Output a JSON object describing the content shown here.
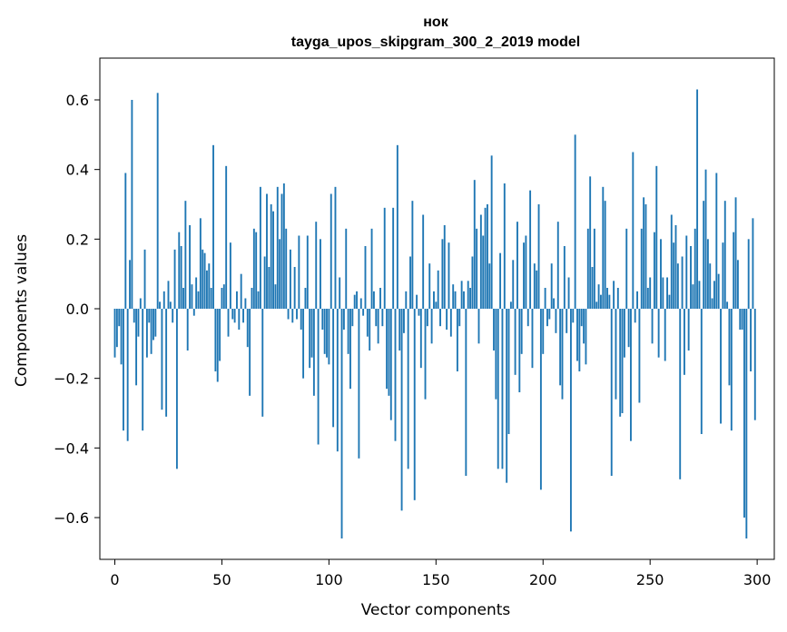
{
  "chart_data": {
    "type": "bar",
    "title": "нок",
    "subtitle": "tayga_upos_skipgram_300_2_2019 model",
    "xlabel": "Vector components",
    "ylabel": "Components values",
    "xlim": [
      -7,
      308
    ],
    "ylim": [
      -0.72,
      0.72
    ],
    "xticks": [
      0,
      50,
      100,
      150,
      200,
      250,
      300
    ],
    "yticks": [
      -0.6,
      -0.4,
      -0.2,
      0.0,
      0.2,
      0.4,
      0.6
    ],
    "ytick_labels": [
      "−0.6",
      "−0.4",
      "−0.2",
      "0.0",
      "0.2",
      "0.4",
      "0.6"
    ],
    "xtick_labels": [
      "0",
      "50",
      "100",
      "150",
      "200",
      "250",
      "300"
    ],
    "grid": false,
    "color": "#1f77b4",
    "x": [
      0,
      1,
      2,
      3,
      4,
      5,
      6,
      7,
      8,
      9,
      10,
      11,
      12,
      13,
      14,
      15,
      16,
      17,
      18,
      19,
      20,
      21,
      22,
      23,
      24,
      25,
      26,
      27,
      28,
      29,
      30,
      31,
      32,
      33,
      34,
      35,
      36,
      37,
      38,
      39,
      40,
      41,
      42,
      43,
      44,
      45,
      46,
      47,
      48,
      49,
      50,
      51,
      52,
      53,
      54,
      55,
      56,
      57,
      58,
      59,
      60,
      61,
      62,
      63,
      64,
      65,
      66,
      67,
      68,
      69,
      70,
      71,
      72,
      73,
      74,
      75,
      76,
      77,
      78,
      79,
      80,
      81,
      82,
      83,
      84,
      85,
      86,
      87,
      88,
      89,
      90,
      91,
      92,
      93,
      94,
      95,
      96,
      97,
      98,
      99,
      100,
      101,
      102,
      103,
      104,
      105,
      106,
      107,
      108,
      109,
      110,
      111,
      112,
      113,
      114,
      115,
      116,
      117,
      118,
      119,
      120,
      121,
      122,
      123,
      124,
      125,
      126,
      127,
      128,
      129,
      130,
      131,
      132,
      133,
      134,
      135,
      136,
      137,
      138,
      139,
      140,
      141,
      142,
      143,
      144,
      145,
      146,
      147,
      148,
      149,
      150,
      151,
      152,
      153,
      154,
      155,
      156,
      157,
      158,
      159,
      160,
      161,
      162,
      163,
      164,
      165,
      166,
      167,
      168,
      169,
      170,
      171,
      172,
      173,
      174,
      175,
      176,
      177,
      178,
      179,
      180,
      181,
      182,
      183,
      184,
      185,
      186,
      187,
      188,
      189,
      190,
      191,
      192,
      193,
      194,
      195,
      196,
      197,
      198,
      199,
      200,
      201,
      202,
      203,
      204,
      205,
      206,
      207,
      208,
      209,
      210,
      211,
      212,
      213,
      214,
      215,
      216,
      217,
      218,
      219,
      220,
      221,
      222,
      223,
      224,
      225,
      226,
      227,
      228,
      229,
      230,
      231,
      232,
      233,
      234,
      235,
      236,
      237,
      238,
      239,
      240,
      241,
      242,
      243,
      244,
      245,
      246,
      247,
      248,
      249,
      250,
      251,
      252,
      253,
      254,
      255,
      256,
      257,
      258,
      259,
      260,
      261,
      262,
      263,
      264,
      265,
      266,
      267,
      268,
      269,
      270,
      271,
      272,
      273,
      274,
      275,
      276,
      277,
      278,
      279,
      280,
      281,
      282,
      283,
      284,
      285,
      286,
      287,
      288,
      289,
      290,
      291,
      292,
      293,
      294,
      295,
      296,
      297,
      298,
      299
    ],
    "values": [
      -0.14,
      -0.11,
      -0.05,
      -0.16,
      -0.35,
      0.39,
      -0.38,
      0.14,
      0.6,
      -0.04,
      -0.22,
      -0.08,
      0.03,
      -0.35,
      0.17,
      -0.14,
      -0.04,
      -0.13,
      -0.09,
      -0.08,
      0.62,
      0.02,
      -0.29,
      0.05,
      -0.31,
      0.08,
      0.02,
      -0.04,
      0.17,
      -0.46,
      0.22,
      0.18,
      0.06,
      0.31,
      -0.12,
      0.24,
      0.07,
      -0.02,
      0.09,
      0.05,
      0.26,
      0.17,
      0.16,
      0.11,
      0.13,
      0.06,
      0.47,
      -0.18,
      -0.21,
      -0.15,
      0.06,
      0.07,
      0.41,
      -0.08,
      0.19,
      -0.03,
      -0.04,
      0.05,
      -0.06,
      0.1,
      -0.04,
      0.03,
      -0.11,
      -0.25,
      0.06,
      0.23,
      0.22,
      0.05,
      0.35,
      -0.31,
      0.15,
      0.33,
      0.12,
      0.3,
      0.28,
      0.07,
      0.35,
      0.2,
      0.33,
      0.36,
      0.23,
      -0.03,
      0.17,
      -0.04,
      0.12,
      -0.03,
      0.21,
      -0.06,
      -0.2,
      0.06,
      0.21,
      -0.17,
      -0.14,
      -0.25,
      0.25,
      -0.39,
      0.2,
      -0.06,
      -0.13,
      -0.14,
      -0.16,
      0.33,
      -0.34,
      0.35,
      -0.41,
      0.09,
      -0.66,
      -0.06,
      0.23,
      -0.13,
      -0.23,
      -0.05,
      0.04,
      0.05,
      -0.43,
      0.03,
      -0.02,
      0.18,
      -0.08,
      -0.12,
      0.23,
      0.05,
      -0.05,
      -0.1,
      0.06,
      -0.05,
      0.29,
      -0.23,
      -0.25,
      -0.32,
      0.29,
      -0.38,
      0.47,
      -0.12,
      -0.58,
      -0.07,
      0.05,
      -0.46,
      0.15,
      0.31,
      -0.55,
      0.04,
      -0.02,
      -0.17,
      0.27,
      -0.26,
      -0.05,
      0.13,
      -0.1,
      0.05,
      0.02,
      0.11,
      -0.05,
      0.2,
      0.24,
      -0.06,
      0.19,
      -0.08,
      0.07,
      0.05,
      -0.18,
      -0.05,
      0.08,
      0.05,
      -0.48,
      0.08,
      0.06,
      0.15,
      0.37,
      0.23,
      -0.1,
      0.27,
      0.21,
      0.29,
      0.3,
      0.13,
      0.44,
      -0.12,
      -0.26,
      -0.46,
      0.16,
      -0.46,
      0.36,
      -0.5,
      -0.36,
      0.02,
      0.14,
      -0.19,
      0.25,
      -0.24,
      -0.13,
      0.19,
      0.21,
      -0.05,
      0.34,
      -0.17,
      0.13,
      0.11,
      0.3,
      -0.52,
      -0.13,
      0.06,
      -0.05,
      -0.03,
      0.13,
      0.03,
      -0.07,
      0.25,
      -0.22,
      -0.26,
      0.18,
      -0.07,
      0.09,
      -0.64,
      -0.04,
      0.5,
      -0.15,
      -0.18,
      -0.05,
      -0.1,
      -0.16,
      0.23,
      0.38,
      0.12,
      0.23,
      0.02,
      0.07,
      0.04,
      0.35,
      0.31,
      0.06,
      0.04,
      -0.48,
      0.08,
      -0.26,
      0.06,
      -0.31,
      -0.3,
      -0.14,
      0.23,
      -0.11,
      -0.38,
      0.45,
      -0.04,
      0.05,
      -0.27,
      0.23,
      0.32,
      0.3,
      0.06,
      0.09,
      -0.1,
      0.22,
      0.41,
      -0.14,
      0.2,
      0.09,
      -0.15,
      0.09,
      0.04,
      0.27,
      0.19,
      0.24,
      0.13,
      -0.49,
      0.15,
      -0.19,
      0.21,
      -0.12,
      0.18,
      0.07,
      0.23,
      0.63,
      0.08,
      -0.36,
      0.31,
      0.4,
      0.2,
      0.13,
      0.03,
      0.08,
      0.39,
      0.1,
      -0.33,
      0.19,
      0.31,
      0.02,
      -0.22,
      -0.35,
      0.22,
      0.32,
      0.14,
      -0.06,
      -0.06,
      -0.6,
      -0.66,
      0.2,
      -0.18,
      0.26,
      -0.32
    ]
  }
}
